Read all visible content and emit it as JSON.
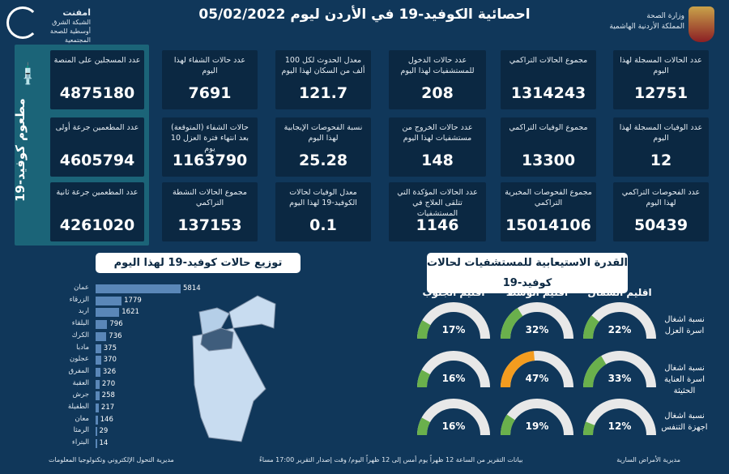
{
  "header": {
    "title": "احصائية الكوفيد-19 في الأردن ليوم",
    "date": "05/02/2022",
    "ministry_line1": "وزارة الصحة",
    "ministry_line2": "المملكة الأردنية الهاشمية",
    "logo_name": "امفنت",
    "logo_sub": "الشبكة الشرق أوسطية للصحة المجتمعية"
  },
  "vaccine": {
    "title": "مطعوم كوفيد-19",
    "cards": [
      {
        "label": "عدد المسجلين على المنصة",
        "value": "4875180"
      },
      {
        "label": "عدد المطعمين جرعة أولى",
        "value": "4605794"
      },
      {
        "label": "عدد المطعمين جرعة ثانية",
        "value": "4261020"
      }
    ]
  },
  "stats": [
    {
      "label": "عدد الحالات المسجلة لهذا اليوم",
      "value": "12751"
    },
    {
      "label": "مجموع الحالات التراكمي",
      "value": "1314243"
    },
    {
      "label": "عدد حالات الدخول للمستشفيات لهذا اليوم",
      "value": "208"
    },
    {
      "label": "معدل الحدوث لكل 100 ألف من السكان لهذا اليوم",
      "value": "121.7"
    },
    {
      "label": "عدد حالات الشفاء لهذا اليوم",
      "value": "7691"
    },
    {
      "label": "عدد الوفيات المسجلة لهذا اليوم",
      "value": "12"
    },
    {
      "label": "مجموع الوفيات التراكمي",
      "value": "13300"
    },
    {
      "label": "عدد حالات الخروج من مستشفيات لهذا اليوم",
      "value": "148"
    },
    {
      "label": "نسبة الفحوصات الإيجابية لهذا اليوم",
      "value": "25.28"
    },
    {
      "label": "حالات الشفاء (المتوقعة) بعد انتهاء فترة العزل 10 يوم",
      "value": "1163790"
    },
    {
      "label": "عدد الفحوصات التراكمي لهذا اليوم",
      "value": "50439"
    },
    {
      "label": "مجموع الفحوصات المخبرية التراكمي",
      "value": "15014106"
    },
    {
      "label": "عدد الحالات المؤكدة التي تتلقى العلاج في المستشفيات",
      "value": "1146"
    },
    {
      "label": "معدل الوفيات لحالات الكوفيد-19 لهذا اليوم",
      "value": "0.1"
    },
    {
      "label": "مجموع الحالات النشطة التراكمي",
      "value": "137153"
    }
  ],
  "chart_data": [
    {
      "type": "bar",
      "title": "توزيع حالات كوفيد-19 لهذا اليوم",
      "categories": [
        "عمان",
        "الزرقاء",
        "اربد",
        "البلقاء",
        "الكرك",
        "مادبا",
        "عجلون",
        "المفرق",
        "العقبة",
        "جرش",
        "الطفيلة",
        "معان",
        "الرمثا",
        "البتراء"
      ],
      "values": [
        5814,
        1779,
        1621,
        796,
        736,
        375,
        370,
        326,
        270,
        258,
        217,
        146,
        29,
        14
      ],
      "orientation": "horizontal",
      "bar_color": "#5a87b8"
    },
    {
      "type": "gauge",
      "title": "القدرة الاستيعابية للمستشفيات لحالات كوفيد-19",
      "columns": [
        "اقليم الشمال",
        "اقليم الوسط",
        "اقليم الجنوب"
      ],
      "rows": [
        "نسبة اشغال اسرة العزل",
        "نسبة اشغال اسرة العناية الحثيثة",
        "نسبة اشغال اجهزة التنفس"
      ],
      "values": [
        [
          22,
          32,
          17
        ],
        [
          33,
          47,
          16
        ],
        [
          12,
          19,
          16
        ]
      ],
      "colors": {
        "normal": "#6ab04c",
        "warning": "#f39c1f",
        "track": "#e8e8e8"
      }
    }
  ],
  "footer": {
    "left": "مديرية التحول الإلكتروني وتكنولوجيا المعلومات",
    "center": "بيانات التقرير من الساعة 12 ظهراً يوم أمس إلى 12 ظهراً اليوم/ وقت إصدار التقرير 17:00 مساءً",
    "right": "مديرية الأمراض السارية"
  }
}
